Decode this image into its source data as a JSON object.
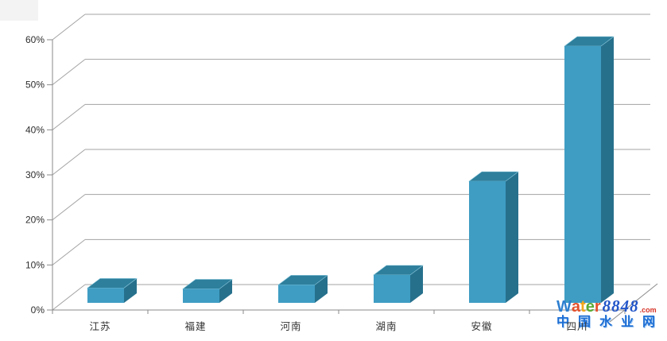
{
  "page": {
    "background": "#ffffff"
  },
  "chart_data": {
    "type": "bar",
    "variant": "3d-column",
    "title": "",
    "xlabel": "",
    "ylabel": "",
    "categories": [
      "江苏",
      "福建",
      "河南",
      "湖南",
      "安徽",
      "四川"
    ],
    "values": [
      3.3,
      3.1,
      4.0,
      6.2,
      27.0,
      57.0
    ],
    "value_unit": "%",
    "ylim": [
      0,
      60
    ],
    "y_tick_step": 10,
    "y_tick_labels": [
      "0%",
      "10%",
      "20%",
      "30%",
      "40%",
      "50%",
      "60%"
    ],
    "grid": "horizontal",
    "legend": "none",
    "colors": {
      "bar_front": "#3f9dc3",
      "bar_top": "#2d7f9c",
      "bar_side": "#26708c",
      "bar_top_highlight": "#8ecadd",
      "gridline": "#a3a3a3",
      "axis": "#8a8a8a",
      "tick_text": "#2e2e2e"
    }
  },
  "watermark": {
    "brand_letters": [
      {
        "ch": "W",
        "color": "#2e7fd0"
      },
      {
        "ch": "a",
        "color": "#e4512b"
      },
      {
        "ch": "t",
        "color": "#f2a71b"
      },
      {
        "ch": "e",
        "color": "#5aaa35"
      },
      {
        "ch": "r",
        "color": "#e4512b"
      }
    ],
    "number": "8848",
    "number_color": "#2356c9",
    "com": ".com",
    "com_color": "#d63226",
    "cn_text": "中国水业网",
    "cn_color": "#1d6ed4"
  }
}
